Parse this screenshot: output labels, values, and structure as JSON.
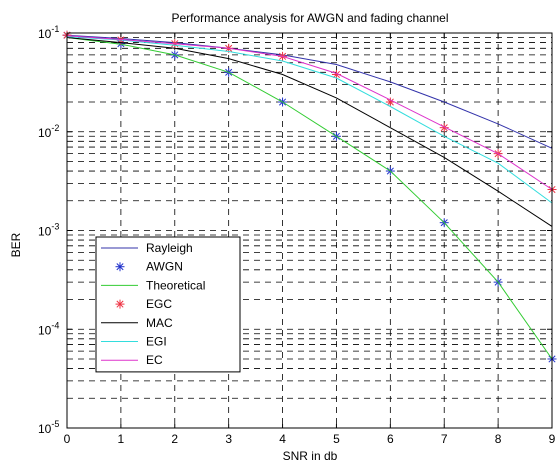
{
  "chart_data": {
    "type": "line",
    "title": "Performance analysis for AWGN and fading channel",
    "xlabel": "SNR in db",
    "ylabel": "BER",
    "xlim": [
      0,
      9
    ],
    "ylim": [
      1e-05,
      0.1
    ],
    "yscale": "log",
    "grid": "dashed, major and minor",
    "legend_position": "lower-left",
    "x_ticks": [
      "0",
      "1",
      "2",
      "3",
      "4",
      "5",
      "6",
      "7",
      "8",
      "9"
    ],
    "y_ticks": [
      {
        "base": "10",
        "exp": "-1",
        "value": 0.1
      },
      {
        "base": "10",
        "exp": "-2",
        "value": 0.01
      },
      {
        "base": "10",
        "exp": "-3",
        "value": 0.001
      },
      {
        "base": "10",
        "exp": "-4",
        "value": 0.0001
      },
      {
        "base": "10",
        "exp": "-5",
        "value": 1e-05
      }
    ],
    "x": [
      0,
      1,
      2,
      3,
      4,
      5,
      6,
      7,
      8,
      9
    ],
    "series": [
      {
        "name": "Rayleigh",
        "color": "#3333aa",
        "style": "line",
        "values": [
          0.095,
          0.088,
          0.08,
          0.07,
          0.06,
          0.048,
          0.032,
          0.02,
          0.012,
          0.0068
        ]
      },
      {
        "name": "AWGN",
        "color": "#2233cc",
        "style": "marker",
        "marker": "*",
        "values": [
          0.095,
          0.078,
          0.06,
          0.04,
          0.02,
          0.009,
          0.004,
          0.0012,
          0.0003,
          5e-05
        ]
      },
      {
        "name": "Theoretical",
        "color": "#33cc33",
        "style": "line",
        "values": [
          0.09,
          0.077,
          0.06,
          0.04,
          0.02,
          0.009,
          0.004,
          0.0012,
          0.0003,
          5e-05
        ]
      },
      {
        "name": "EGC",
        "color": "#ee3344",
        "style": "marker",
        "marker": "*",
        "values": [
          0.095,
          0.085,
          0.078,
          0.07,
          0.058,
          0.038,
          0.02,
          0.011,
          0.006,
          0.0026
        ]
      },
      {
        "name": "MAC",
        "color": "#000000",
        "style": "line",
        "values": [
          0.09,
          0.08,
          0.07,
          0.055,
          0.038,
          0.022,
          0.011,
          0.0055,
          0.0025,
          0.0011
        ]
      },
      {
        "name": "EGI",
        "color": "#33dddd",
        "style": "line",
        "values": [
          0.092,
          0.085,
          0.075,
          0.065,
          0.052,
          0.035,
          0.018,
          0.009,
          0.0048,
          0.0019
        ]
      },
      {
        "name": "EC",
        "color": "#dd33cc",
        "style": "line",
        "values": [
          0.094,
          0.086,
          0.078,
          0.07,
          0.058,
          0.039,
          0.021,
          0.0112,
          0.006,
          0.0026
        ]
      }
    ]
  }
}
